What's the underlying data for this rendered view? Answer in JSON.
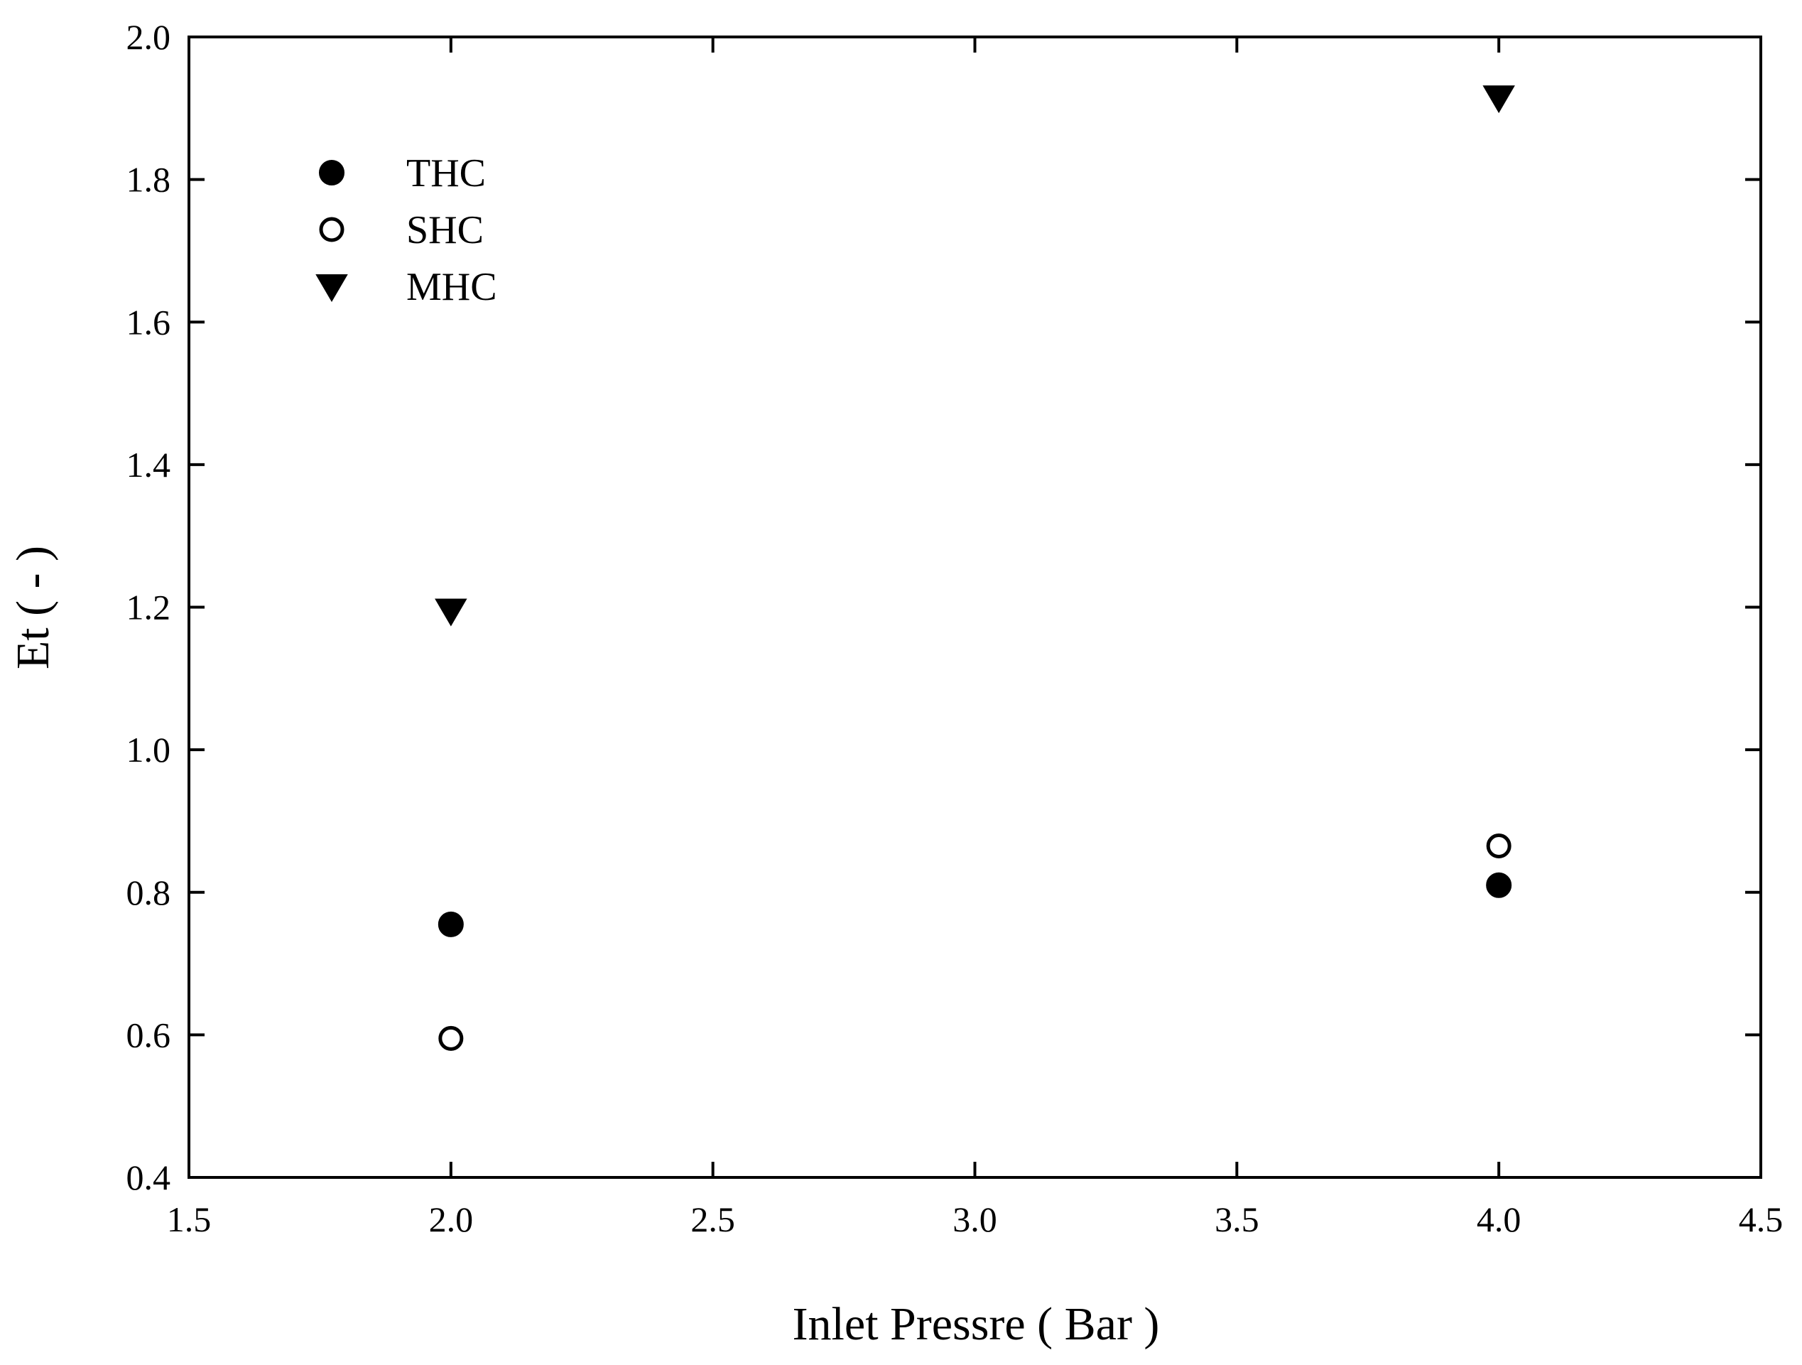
{
  "chart_data": {
    "type": "scatter",
    "xlabel": "Inlet Pressre ( Bar )",
    "ylabel": "Et ( - )",
    "xlim": [
      1.5,
      4.5
    ],
    "ylim": [
      0.4,
      2.0
    ],
    "xticks": [
      1.5,
      2.0,
      2.5,
      3.0,
      3.5,
      4.0,
      4.5
    ],
    "yticks": [
      0.4,
      0.6,
      0.8,
      1.0,
      1.2,
      1.4,
      1.6,
      1.8,
      2.0
    ],
    "xtick_labels": [
      "1.5",
      "2.0",
      "2.5",
      "3.0",
      "3.5",
      "4.0",
      "4.5"
    ],
    "ytick_labels": [
      "0.4",
      "0.6",
      "0.8",
      "1.0",
      "1.2",
      "1.4",
      "1.6",
      "1.8",
      "2.0"
    ],
    "grid": false,
    "legend_position": "top-left",
    "series": [
      {
        "name": "THC",
        "marker": "filled-circle",
        "color": "#000000",
        "x": [
          2.0,
          4.0
        ],
        "y": [
          0.755,
          0.81
        ]
      },
      {
        "name": "SHC",
        "marker": "open-circle",
        "color": "#000000",
        "x": [
          2.0,
          4.0
        ],
        "y": [
          0.595,
          0.865
        ]
      },
      {
        "name": "MHC",
        "marker": "filled-down-triangle",
        "color": "#000000",
        "x": [
          2.0,
          4.0
        ],
        "y": [
          1.195,
          1.915
        ]
      }
    ]
  }
}
